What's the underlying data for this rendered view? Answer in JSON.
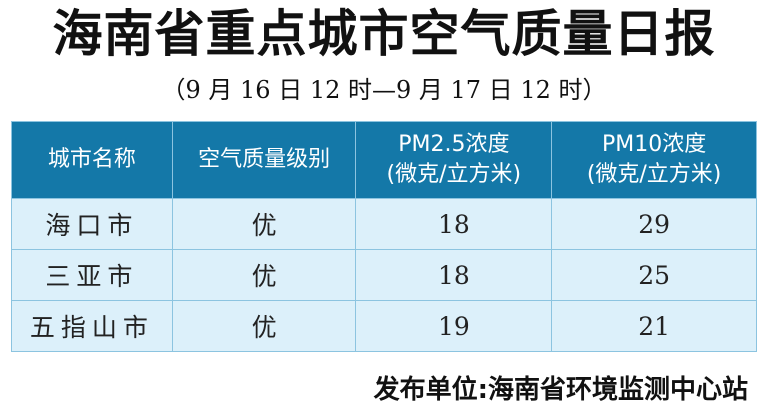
{
  "title": "海南省重点城市空气质量日报",
  "subtitle": "（9 月 16 日 12 时—9 月 17 日 12 时）",
  "table": {
    "headers": [
      "城市名称",
      "空气质量级别",
      "PM2.5浓度\n(微克/立方米)",
      "PM10浓度\n(微克/立方米)"
    ],
    "header_lines": {
      "pm25_a": "PM2.5浓度",
      "pm25_b": "(微克/立方米)",
      "pm10_a": "PM10浓度",
      "pm10_b": "(微克/立方米)"
    },
    "rows": [
      {
        "city": "海口市",
        "level": "优",
        "pm25": "18",
        "pm10": "29"
      },
      {
        "city": "三亚市",
        "level": "优",
        "pm25": "18",
        "pm10": "25"
      },
      {
        "city": "五指山市",
        "level": "优",
        "pm25": "19",
        "pm10": "21"
      }
    ]
  },
  "footer": "发布单位:海南省环境监测中心站",
  "colors": {
    "header_bg": "#1478a8",
    "row_bg": "#dcf0fa",
    "border": "#8cc4e0"
  }
}
